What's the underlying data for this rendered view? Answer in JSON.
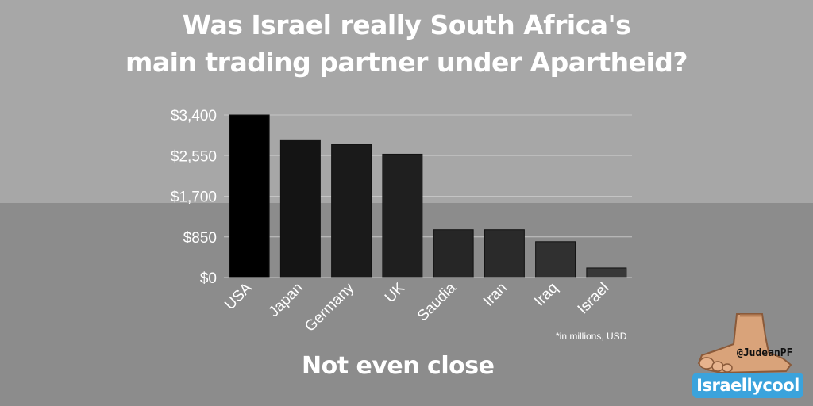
{
  "title_lines": [
    "Was Israel really South Africa's",
    "main trading partner under Apartheid?"
  ],
  "subtitle": "Not even close",
  "footnote": "*in millions, USD",
  "watermark": {
    "handle": "@JudeanPF",
    "brand": "Israellycool"
  },
  "colors": {
    "bg_top": "#a7a7a7",
    "bg_bottom": "#8c8c8c",
    "grid": "#c4c4c4",
    "text": "#ffffff",
    "brand": "#3ba3dc"
  },
  "chart_data": {
    "type": "bar",
    "categories": [
      "USA",
      "Japan",
      "Germany",
      "UK",
      "Saudia",
      "Iran",
      "Iraq",
      "Israel"
    ],
    "values": [
      3400,
      2880,
      2780,
      2580,
      1000,
      1000,
      750,
      200
    ],
    "bar_colors": [
      "#000000",
      "#141414",
      "#1a1a1a",
      "#1f1f1f",
      "#262626",
      "#2a2a2a",
      "#303030",
      "#383838"
    ],
    "yticks": [
      0,
      850,
      1700,
      2550,
      3400
    ],
    "ytick_labels": [
      "$0",
      "$850",
      "$1,700",
      "$2,550",
      "$3,400"
    ],
    "ylim": [
      0,
      3400
    ],
    "grid": true,
    "title": "Was Israel really South Africa's main trading partner under Apartheid?",
    "xlabel": "",
    "ylabel": ""
  }
}
